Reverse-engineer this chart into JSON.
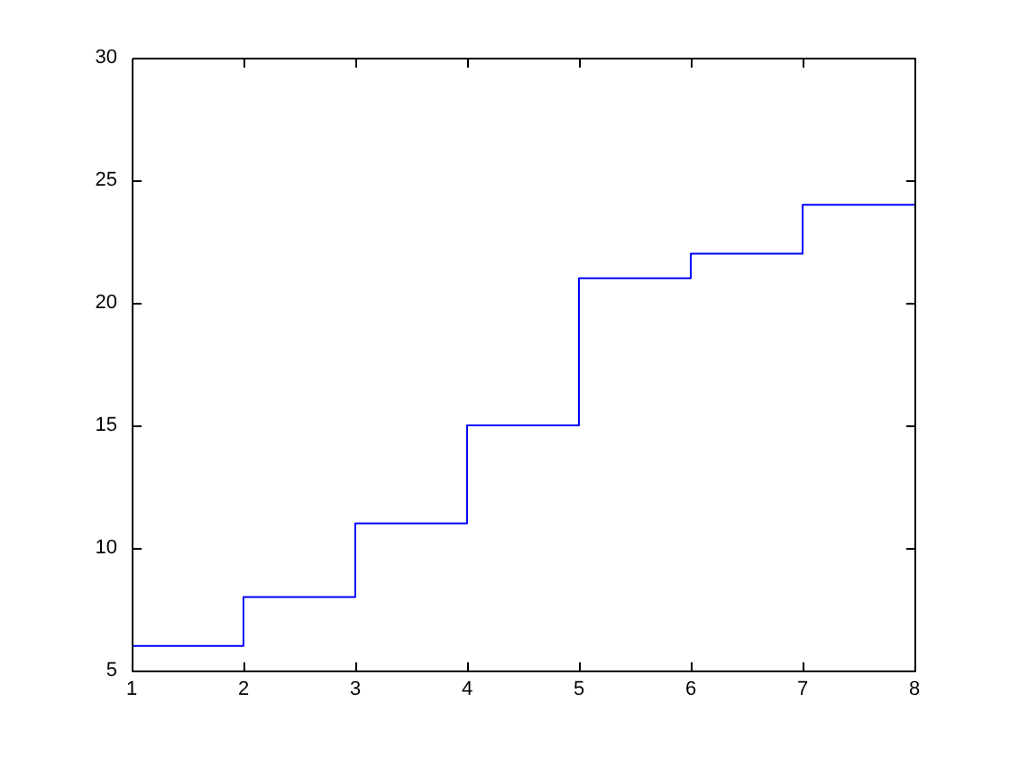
{
  "chart_data": {
    "type": "step",
    "x": [
      1,
      2,
      3,
      4,
      5,
      6,
      7,
      8
    ],
    "values": [
      6,
      8,
      11,
      15,
      21,
      22,
      24,
      24
    ],
    "color": "#0000ff",
    "xlim": [
      1,
      8
    ],
    "xticks": [
      1,
      2,
      3,
      4,
      5,
      6,
      7,
      8
    ],
    "ylim": [
      5,
      30
    ],
    "yticks": [
      5,
      10,
      15,
      20,
      25,
      30
    ]
  }
}
